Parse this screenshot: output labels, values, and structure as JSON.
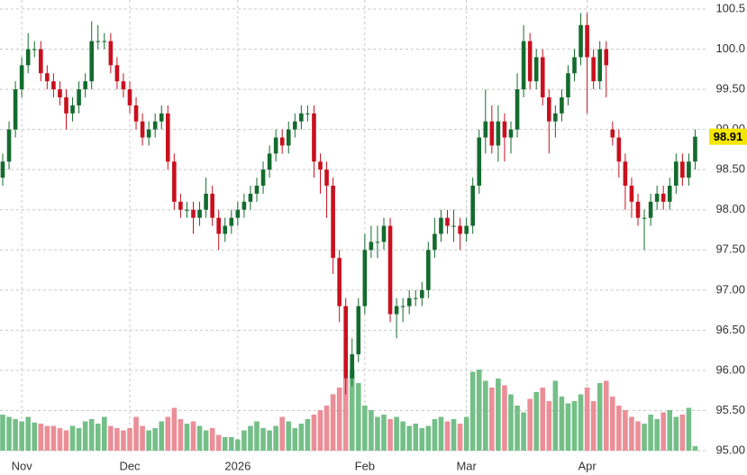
{
  "chart_data": {
    "type": "candlestick",
    "categories": [
      null,
      null,
      null,
      "Nov",
      null,
      null,
      null,
      null,
      null,
      null,
      null,
      null,
      null,
      null,
      null,
      null,
      null,
      null,
      null,
      null,
      "Dec",
      null,
      null,
      null,
      null,
      null,
      null,
      null,
      null,
      null,
      null,
      null,
      null,
      null,
      null,
      null,
      null,
      "2026",
      null,
      null,
      null,
      null,
      null,
      null,
      null,
      null,
      null,
      null,
      null,
      null,
      null,
      null,
      null,
      null,
      null,
      null,
      null,
      "Feb",
      null,
      null,
      null,
      null,
      null,
      null,
      null,
      null,
      null,
      null,
      null,
      null,
      null,
      null,
      null,
      "Mar",
      null,
      null,
      null,
      null,
      null,
      null,
      null,
      null,
      null,
      null,
      null,
      null,
      null,
      null,
      null,
      null,
      null,
      null,
      "Apr",
      null,
      null,
      null,
      null,
      null,
      null,
      null,
      null,
      null,
      null,
      null,
      null,
      null,
      null,
      null,
      null,
      null
    ],
    "open": [
      98.4,
      98.6,
      99.0,
      99.5,
      99.8,
      100.0,
      100.0,
      99.7,
      99.6,
      99.5,
      99.4,
      99.2,
      99.3,
      99.5,
      99.6,
      100.1,
      100.1,
      100.1,
      99.8,
      99.6,
      99.5,
      99.3,
      99.1,
      98.9,
      99.0,
      99.1,
      99.2,
      98.6,
      98.1,
      98.0,
      98.0,
      97.9,
      98.0,
      98.2,
      97.9,
      97.7,
      97.8,
      97.9,
      98.0,
      98.1,
      98.2,
      98.3,
      98.5,
      98.7,
      98.9,
      98.8,
      99.0,
      99.1,
      99.2,
      99.2,
      98.6,
      98.5,
      98.3,
      97.4,
      96.8,
      95.9,
      96.2,
      96.8,
      97.5,
      97.6,
      97.6,
      97.8,
      96.7,
      96.8,
      96.8,
      96.9,
      96.9,
      97.0,
      97.5,
      97.7,
      97.9,
      97.8,
      97.8,
      97.7,
      97.8,
      98.3,
      98.9,
      99.1,
      98.8,
      99.1,
      98.9,
      99.0,
      99.5,
      100.1,
      99.6,
      99.9,
      99.4,
      99.1,
      99.2,
      99.4,
      99.7,
      99.9,
      100.3,
      99.9,
      99.6,
      100.0,
      99.0,
      98.9,
      98.6,
      98.3,
      98.1,
      97.9,
      97.9,
      98.1,
      98.2,
      98.1,
      98.3,
      98.6,
      98.4,
      98.6
    ],
    "high": [
      98.7,
      99.1,
      99.6,
      99.9,
      100.2,
      100.1,
      100.1,
      99.8,
      99.7,
      99.6,
      99.5,
      99.4,
      99.6,
      99.7,
      100.35,
      100.3,
      100.2,
      100.2,
      99.9,
      99.7,
      99.6,
      99.4,
      99.2,
      99.1,
      99.2,
      99.3,
      99.3,
      98.7,
      98.2,
      98.1,
      98.1,
      98.1,
      98.4,
      98.3,
      98.0,
      97.9,
      98.0,
      98.1,
      98.2,
      98.3,
      98.4,
      98.6,
      98.8,
      99.0,
      99.0,
      99.1,
      99.2,
      99.3,
      99.3,
      99.3,
      98.7,
      98.6,
      98.4,
      97.5,
      96.9,
      96.4,
      96.9,
      97.7,
      97.8,
      97.8,
      97.9,
      97.9,
      96.9,
      96.9,
      97.0,
      97.0,
      97.1,
      97.6,
      97.9,
      98.0,
      98.0,
      98.0,
      97.9,
      97.9,
      98.4,
      99.0,
      99.5,
      99.3,
      99.3,
      99.2,
      99.1,
      99.7,
      100.3,
      100.2,
      100.0,
      100.0,
      99.5,
      99.3,
      99.5,
      99.8,
      100.0,
      100.45,
      100.45,
      100.0,
      100.1,
      100.1,
      99.1,
      99.0,
      98.7,
      98.4,
      98.2,
      98.0,
      98.2,
      98.3,
      98.3,
      98.4,
      98.7,
      98.7,
      98.7,
      99.0
    ],
    "low": [
      98.3,
      98.5,
      98.9,
      99.4,
      99.7,
      99.9,
      99.6,
      99.5,
      99.4,
      99.3,
      99.0,
      99.1,
      99.2,
      99.4,
      99.5,
      100.0,
      100.0,
      99.7,
      99.5,
      99.4,
      99.2,
      99.0,
      98.8,
      98.8,
      98.9,
      99.0,
      98.5,
      98.0,
      97.9,
      97.9,
      97.7,
      97.8,
      97.9,
      97.8,
      97.5,
      97.6,
      97.7,
      97.8,
      97.9,
      98.0,
      98.1,
      98.2,
      98.4,
      98.6,
      98.7,
      98.7,
      98.9,
      99.0,
      99.1,
      98.4,
      98.2,
      97.9,
      97.2,
      96.6,
      95.7,
      95.8,
      96.1,
      96.7,
      97.4,
      97.4,
      97.5,
      96.6,
      96.4,
      96.6,
      96.7,
      96.8,
      96.8,
      96.9,
      97.4,
      97.6,
      97.7,
      97.6,
      97.5,
      97.6,
      97.7,
      98.2,
      98.7,
      98.7,
      98.6,
      98.6,
      98.7,
      98.9,
      99.4,
      99.5,
      99.5,
      99.3,
      98.7,
      98.9,
      99.1,
      99.3,
      99.6,
      99.8,
      99.2,
      99.5,
      99.5,
      99.4,
      98.8,
      98.4,
      98.0,
      97.9,
      97.8,
      97.5,
      97.8,
      98.0,
      98.0,
      98.0,
      98.2,
      98.3,
      98.3,
      98.5
    ],
    "close": [
      98.6,
      99.0,
      99.5,
      99.8,
      100.0,
      100.0,
      99.7,
      99.6,
      99.5,
      99.4,
      99.2,
      99.3,
      99.5,
      99.6,
      100.1,
      100.1,
      100.1,
      99.8,
      99.6,
      99.5,
      99.3,
      99.1,
      98.9,
      99.0,
      99.1,
      99.2,
      98.6,
      98.1,
      98.0,
      98.0,
      97.9,
      98.0,
      98.2,
      97.9,
      97.7,
      97.8,
      97.9,
      98.0,
      98.1,
      98.2,
      98.3,
      98.5,
      98.7,
      98.9,
      98.8,
      99.0,
      99.1,
      99.2,
      99.2,
      98.6,
      98.5,
      98.3,
      97.4,
      96.8,
      95.9,
      96.2,
      96.8,
      97.5,
      97.6,
      97.6,
      97.8,
      96.7,
      96.8,
      96.8,
      96.9,
      96.9,
      97.0,
      97.5,
      97.7,
      97.9,
      97.8,
      97.8,
      97.7,
      97.8,
      98.3,
      98.9,
      99.1,
      98.8,
      99.1,
      98.9,
      99.0,
      99.5,
      100.1,
      99.6,
      99.9,
      99.4,
      99.1,
      99.2,
      99.4,
      99.7,
      99.9,
      100.3,
      99.9,
      99.6,
      100.0,
      99.8,
      98.9,
      98.6,
      98.3,
      98.1,
      97.9,
      97.9,
      98.1,
      98.2,
      98.1,
      98.3,
      98.6,
      98.4,
      98.6,
      98.91
    ],
    "volume": [
      32,
      30,
      28,
      26,
      30,
      25,
      24,
      22,
      22,
      20,
      18,
      22,
      20,
      26,
      28,
      24,
      30,
      22,
      20,
      18,
      20,
      30,
      22,
      18,
      20,
      26,
      30,
      38,
      28,
      24,
      26,
      22,
      18,
      20,
      14,
      12,
      12,
      10,
      18,
      22,
      26,
      20,
      18,
      22,
      30,
      26,
      20,
      24,
      28,
      32,
      36,
      40,
      50,
      56,
      64,
      72,
      60,
      40,
      36,
      30,
      32,
      28,
      30,
      26,
      22,
      24,
      20,
      22,
      28,
      30,
      26,
      28,
      24,
      30,
      70,
      72,
      62,
      56,
      64,
      58,
      50,
      40,
      34,
      46,
      52,
      56,
      44,
      62,
      48,
      42,
      44,
      50,
      56,
      44,
      60,
      62,
      48,
      40,
      36,
      30,
      26,
      24,
      32,
      28,
      34,
      36,
      30,
      32,
      38,
      4
    ],
    "ylim": [
      95,
      100.5
    ],
    "yticks": [
      {
        "value": 95,
        "label": "95.00"
      },
      {
        "value": 95.5,
        "label": "95.50"
      },
      {
        "value": 96,
        "label": "96.00"
      },
      {
        "value": 96.5,
        "label": "96.50"
      },
      {
        "value": 97,
        "label": "97.00"
      },
      {
        "value": 97.5,
        "label": "97.50"
      },
      {
        "value": 98,
        "label": "98.00"
      },
      {
        "value": 98.5,
        "label": "98.50"
      },
      {
        "value": 99,
        "label": "99.00"
      },
      {
        "value": 99.5,
        "label": "99.50"
      },
      {
        "value": 100,
        "label": "100.0"
      },
      {
        "value": 100.5,
        "label": "100.5"
      }
    ],
    "grid": true,
    "up_color": "#146b2e",
    "down_color": "#c8101e",
    "volume_up_color": "#74bf88",
    "volume_down_color": "#eb8e97",
    "last_price_color": "#f5e600"
  }
}
